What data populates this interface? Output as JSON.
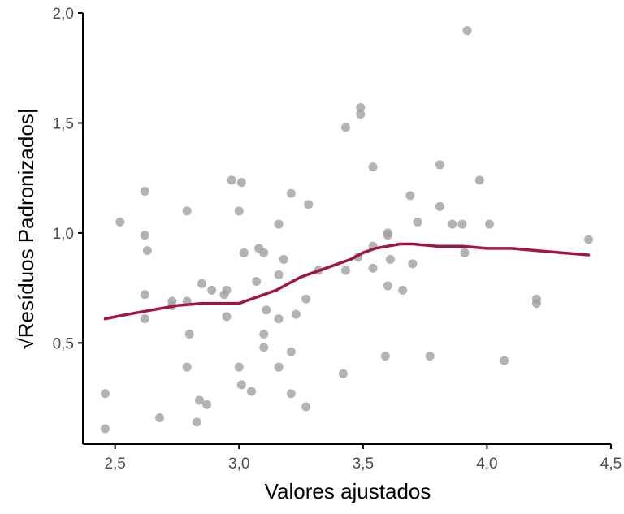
{
  "chart_data": {
    "type": "scatter",
    "title": "",
    "xlabel": "Valores ajustados",
    "ylabel": "Resíduos Padronizados|",
    "ylabel_prefix": "√",
    "xlim": [
      2.37,
      4.5
    ],
    "ylim": [
      0.04,
      2.0
    ],
    "x_ticks": [
      2.5,
      3.0,
      3.5,
      4.0,
      4.5
    ],
    "x_tick_labels": [
      "2,5",
      "3,0",
      "3,5",
      "4,0",
      "4,5"
    ],
    "y_ticks": [
      0.5,
      1.0,
      1.5,
      2.0
    ],
    "y_tick_labels": [
      "0,5",
      "1,0",
      "1,5",
      "2,0"
    ],
    "grid": false,
    "legend": "none",
    "point_color": "#a0a0a0",
    "line_color": "#a0163c",
    "points": [
      [
        2.46,
        0.27
      ],
      [
        2.46,
        0.11
      ],
      [
        2.52,
        1.05
      ],
      [
        2.62,
        1.19
      ],
      [
        2.62,
        0.99
      ],
      [
        2.63,
        0.92
      ],
      [
        2.62,
        0.72
      ],
      [
        2.62,
        0.61
      ],
      [
        2.68,
        0.16
      ],
      [
        2.73,
        0.69
      ],
      [
        2.73,
        0.67
      ],
      [
        2.79,
        1.1
      ],
      [
        2.79,
        0.69
      ],
      [
        2.8,
        0.54
      ],
      [
        2.79,
        0.39
      ],
      [
        2.84,
        0.24
      ],
      [
        2.83,
        0.14
      ],
      [
        2.85,
        0.77
      ],
      [
        2.87,
        0.22
      ],
      [
        2.89,
        0.74
      ],
      [
        2.94,
        0.72
      ],
      [
        2.95,
        0.74
      ],
      [
        2.95,
        0.62
      ],
      [
        2.97,
        1.24
      ],
      [
        3.01,
        1.23
      ],
      [
        3.0,
        1.1
      ],
      [
        3.02,
        0.91
      ],
      [
        3.0,
        0.39
      ],
      [
        3.01,
        0.31
      ],
      [
        3.05,
        0.28
      ],
      [
        3.07,
        0.78
      ],
      [
        3.08,
        0.93
      ],
      [
        3.1,
        0.91
      ],
      [
        3.11,
        0.65
      ],
      [
        3.1,
        0.54
      ],
      [
        3.1,
        0.48
      ],
      [
        3.16,
        1.04
      ],
      [
        3.16,
        0.81
      ],
      [
        3.16,
        0.61
      ],
      [
        3.16,
        0.39
      ],
      [
        3.18,
        0.88
      ],
      [
        3.21,
        1.18
      ],
      [
        3.21,
        0.46
      ],
      [
        3.21,
        0.27
      ],
      [
        3.23,
        0.63
      ],
      [
        3.27,
        0.7
      ],
      [
        3.28,
        1.13
      ],
      [
        3.27,
        0.21
      ],
      [
        3.32,
        0.83
      ],
      [
        3.42,
        0.36
      ],
      [
        3.43,
        1.48
      ],
      [
        3.43,
        0.83
      ],
      [
        3.48,
        0.89
      ],
      [
        3.49,
        1.57
      ],
      [
        3.49,
        1.54
      ],
      [
        3.54,
        1.3
      ],
      [
        3.54,
        0.94
      ],
      [
        3.54,
        0.84
      ],
      [
        3.59,
        0.44
      ],
      [
        3.6,
        1.0
      ],
      [
        3.6,
        0.99
      ],
      [
        3.6,
        0.76
      ],
      [
        3.61,
        0.88
      ],
      [
        3.66,
        0.74
      ],
      [
        3.69,
        1.17
      ],
      [
        3.7,
        0.86
      ],
      [
        3.72,
        1.05
      ],
      [
        3.77,
        0.44
      ],
      [
        3.81,
        1.31
      ],
      [
        3.81,
        1.12
      ],
      [
        3.86,
        1.04
      ],
      [
        3.9,
        1.04
      ],
      [
        3.91,
        0.91
      ],
      [
        3.92,
        1.92
      ],
      [
        3.97,
        1.24
      ],
      [
        4.01,
        1.04
      ],
      [
        4.07,
        0.42
      ],
      [
        4.2,
        0.7
      ],
      [
        4.2,
        0.68
      ],
      [
        4.41,
        0.97
      ]
    ],
    "smooth_line": [
      [
        2.46,
        0.61
      ],
      [
        2.55,
        0.63
      ],
      [
        2.65,
        0.65
      ],
      [
        2.75,
        0.67
      ],
      [
        2.85,
        0.68
      ],
      [
        2.95,
        0.68
      ],
      [
        3.0,
        0.68
      ],
      [
        3.05,
        0.7
      ],
      [
        3.1,
        0.72
      ],
      [
        3.15,
        0.74
      ],
      [
        3.2,
        0.77
      ],
      [
        3.25,
        0.8
      ],
      [
        3.3,
        0.82
      ],
      [
        3.35,
        0.84
      ],
      [
        3.4,
        0.86
      ],
      [
        3.45,
        0.88
      ],
      [
        3.5,
        0.91
      ],
      [
        3.55,
        0.93
      ],
      [
        3.6,
        0.94
      ],
      [
        3.65,
        0.95
      ],
      [
        3.7,
        0.95
      ],
      [
        3.8,
        0.94
      ],
      [
        3.9,
        0.94
      ],
      [
        4.0,
        0.93
      ],
      [
        4.1,
        0.93
      ],
      [
        4.2,
        0.92
      ],
      [
        4.3,
        0.91
      ],
      [
        4.41,
        0.9
      ]
    ]
  }
}
